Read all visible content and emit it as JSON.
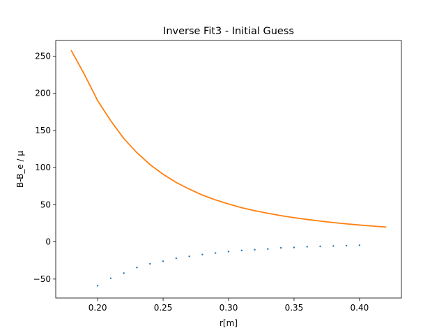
{
  "chart_data": {
    "type": "line",
    "title": "Inverse Fit3 - Initial Guess",
    "xlabel": "r[m]",
    "ylabel": "B-B_e / μ",
    "xlim": [
      0.168,
      0.432
    ],
    "ylim": [
      -75.5,
      271
    ],
    "xticks": [
      0.2,
      0.25,
      0.3,
      0.35,
      0.4
    ],
    "xtick_labels": [
      "0.20",
      "0.25",
      "0.30",
      "0.35",
      "0.40"
    ],
    "yticks": [
      -50,
      0,
      50,
      100,
      150,
      200,
      250
    ],
    "ytick_labels": [
      "−50",
      "0",
      "50",
      "100",
      "150",
      "200",
      "250"
    ],
    "grid": false,
    "legend": "none",
    "series": [
      {
        "kind": "scatter",
        "color": "#1f77b4",
        "x": [
          0.2,
          0.21,
          0.22,
          0.23,
          0.24,
          0.25,
          0.26,
          0.27,
          0.28,
          0.29,
          0.3,
          0.31,
          0.32,
          0.33,
          0.34,
          0.35,
          0.36,
          0.37,
          0.38,
          0.39,
          0.4
        ],
        "y": [
          -59,
          -49,
          -42,
          -34.5,
          -29.5,
          -26,
          -22,
          -19.5,
          -17,
          -15,
          -13,
          -11.5,
          -10.5,
          -9.5,
          -8,
          -7.5,
          -6.5,
          -6,
          -5.5,
          -5,
          -4.5
        ]
      },
      {
        "kind": "line",
        "color": "#ff7f0e",
        "x": [
          0.18,
          0.19,
          0.2,
          0.21,
          0.22,
          0.23,
          0.24,
          0.25,
          0.26,
          0.27,
          0.28,
          0.29,
          0.3,
          0.31,
          0.32,
          0.33,
          0.34,
          0.35,
          0.36,
          0.37,
          0.38,
          0.39,
          0.4,
          0.41,
          0.42
        ],
        "y": [
          257,
          225,
          190,
          163,
          139,
          120,
          104,
          91,
          80,
          71,
          63,
          56.5,
          51,
          46,
          42,
          38.5,
          35.3,
          32.6,
          30.2,
          28,
          26,
          24.3,
          22.7,
          21.3,
          20
        ]
      }
    ]
  }
}
